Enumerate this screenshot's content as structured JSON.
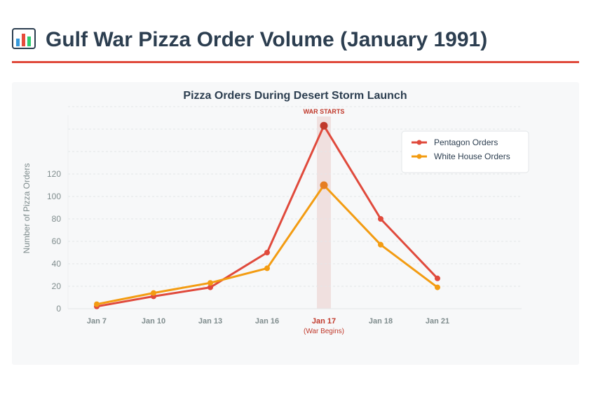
{
  "page": {
    "title": "Gulf War Pizza Order Volume (January 1991)",
    "title_icon": "bar-chart-icon"
  },
  "chart_data": {
    "type": "line",
    "title": "Pizza Orders During Desert Storm Launch",
    "xlabel": "",
    "ylabel": "Number of Pizza Orders",
    "categories": [
      "Jan 7",
      "Jan 10",
      "Jan 13",
      "Jan 16",
      "Jan 17",
      "Jan 18",
      "Jan 21"
    ],
    "yticks": [
      0,
      20,
      40,
      60,
      80,
      100,
      120
    ],
    "ylim": [
      0,
      180
    ],
    "grid": true,
    "legend_position": "top-right",
    "series": [
      {
        "name": "Pentagon Orders",
        "color": "#e04a3c",
        "values": [
          2,
          11,
          19,
          50,
          163,
          80,
          27
        ]
      },
      {
        "name": "White House Orders",
        "color": "#f39c12",
        "values": [
          4,
          14,
          23,
          36,
          110,
          57,
          19
        ]
      }
    ],
    "highlight": {
      "category": "Jan 17",
      "label": "WAR STARTS",
      "sublabel": "(War Begins)",
      "color": "#c0392b"
    }
  }
}
